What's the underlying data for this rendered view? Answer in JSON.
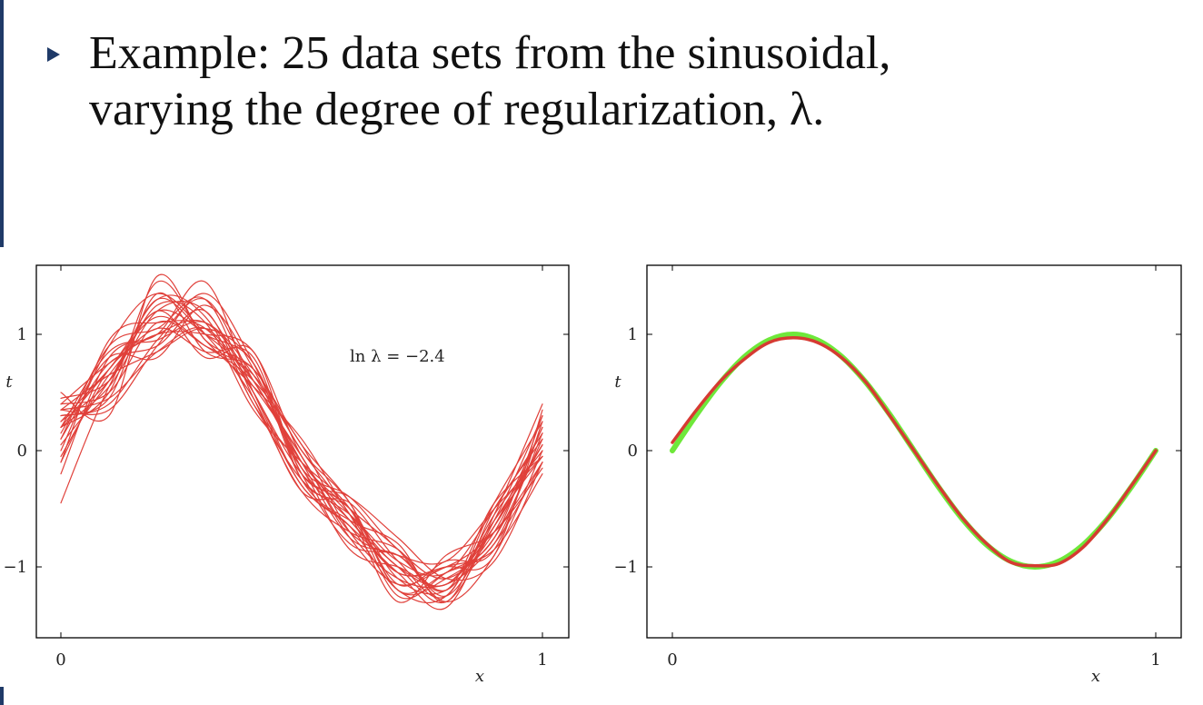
{
  "slide": {
    "bullet_line1": "Example: 25 data sets from the sinusoidal,",
    "bullet_line2": "varying the degree of regularization, λ."
  },
  "chart_data": [
    {
      "type": "line",
      "title": "",
      "xlabel": "x",
      "ylabel": "t",
      "xlim": [
        0,
        1
      ],
      "ylim": [
        -1.6,
        1.6
      ],
      "xticks": [
        "0",
        "1"
      ],
      "yticks": [
        "−1",
        "0",
        "1"
      ],
      "annotation": "ln λ = −2.4",
      "series_color": "#e0403a",
      "num_series": 25,
      "series": [
        {
          "x": [
            0,
            0.1,
            0.2,
            0.3,
            0.4,
            0.5,
            0.6,
            0.7,
            0.8,
            0.9,
            1.0
          ],
          "values": [
            0.25,
            0.6,
            1.3,
            1.0,
            0.75,
            -0.25,
            -0.5,
            -1.1,
            -1.2,
            -0.65,
            0.2
          ]
        },
        {
          "x": [
            0,
            0.1,
            0.2,
            0.3,
            0.4,
            0.5,
            0.6,
            0.7,
            0.8,
            0.9,
            1.0
          ],
          "values": [
            -0.1,
            0.7,
            1.0,
            1.1,
            0.6,
            -0.1,
            -0.5,
            -0.85,
            -1.3,
            -0.9,
            0.0
          ]
        },
        {
          "x": [
            0,
            0.1,
            0.2,
            0.3,
            0.4,
            0.5,
            0.6,
            0.7,
            0.8,
            0.9,
            1.0
          ],
          "values": [
            0.35,
            0.45,
            0.85,
            1.05,
            0.55,
            -0.05,
            -0.7,
            -0.9,
            -0.95,
            -0.5,
            -0.05
          ]
        },
        {
          "x": [
            0,
            0.1,
            0.2,
            0.3,
            0.4,
            0.5,
            0.6,
            0.7,
            0.8,
            0.9,
            1.0
          ],
          "values": [
            0.5,
            0.3,
            1.5,
            0.95,
            0.7,
            0.05,
            -0.45,
            -1.2,
            -1.05,
            -0.8,
            0.15
          ]
        },
        {
          "x": [
            0,
            0.1,
            0.2,
            0.3,
            0.4,
            0.5,
            0.6,
            0.7,
            0.8,
            0.9,
            1.0
          ],
          "values": [
            0.2,
            0.85,
            1.0,
            1.45,
            0.5,
            -0.3,
            -0.65,
            -1.05,
            -1.35,
            -0.55,
            0.4
          ]
        },
        {
          "x": [
            0,
            0.1,
            0.2,
            0.3,
            0.4,
            0.5,
            0.6,
            0.7,
            0.8,
            0.9,
            1.0
          ],
          "values": [
            -0.45,
            0.55,
            1.2,
            0.8,
            0.85,
            -0.2,
            -0.4,
            -0.75,
            -1.1,
            -0.95,
            -0.1
          ]
        },
        {
          "x": [
            0,
            0.1,
            0.2,
            0.3,
            0.4,
            0.5,
            0.6,
            0.7,
            0.8,
            0.9,
            1.0
          ],
          "values": [
            0.1,
            0.75,
            0.9,
            1.2,
            0.4,
            -0.15,
            -0.85,
            -1.0,
            -1.15,
            -0.6,
            0.05
          ]
        },
        {
          "x": [
            0,
            0.1,
            0.2,
            0.3,
            0.4,
            0.5,
            0.6,
            0.7,
            0.8,
            0.9,
            1.0
          ],
          "values": [
            0.4,
            0.5,
            1.1,
            0.9,
            0.65,
            0.0,
            -0.55,
            -1.3,
            -0.9,
            -0.7,
            -0.15
          ]
        },
        {
          "x": [
            0,
            0.1,
            0.2,
            0.3,
            0.4,
            0.5,
            0.6,
            0.7,
            0.8,
            0.9,
            1.0
          ],
          "values": [
            0.0,
            0.9,
            1.35,
            1.0,
            0.45,
            -0.35,
            -0.45,
            -0.95,
            -1.25,
            -0.45,
            0.25
          ]
        },
        {
          "x": [
            0,
            0.1,
            0.2,
            0.3,
            0.4,
            0.5,
            0.6,
            0.7,
            0.8,
            0.9,
            1.0
          ],
          "values": [
            0.3,
            0.4,
            0.95,
            1.3,
            0.6,
            -0.05,
            -0.75,
            -1.15,
            -1.0,
            -0.85,
            -0.2
          ]
        },
        {
          "x": [
            0,
            0.1,
            0.2,
            0.3,
            0.4,
            0.5,
            0.6,
            0.7,
            0.8,
            0.9,
            1.0
          ],
          "values": [
            -0.05,
            0.65,
            1.05,
            0.85,
            0.8,
            -0.25,
            -0.6,
            -0.8,
            -1.3,
            -0.5,
            0.1
          ]
        },
        {
          "x": [
            0,
            0.1,
            0.2,
            0.3,
            0.4,
            0.5,
            0.6,
            0.7,
            0.8,
            0.9,
            1.0
          ],
          "values": [
            0.45,
            0.6,
            1.25,
            1.1,
            0.35,
            -0.1,
            -0.5,
            -1.25,
            -1.05,
            -0.75,
            0.3
          ]
        },
        {
          "x": [
            0,
            0.1,
            0.2,
            0.3,
            0.4,
            0.5,
            0.6,
            0.7,
            0.8,
            0.9,
            1.0
          ],
          "values": [
            0.15,
            0.8,
            0.8,
            1.25,
            0.7,
            -0.2,
            -0.8,
            -0.9,
            -1.2,
            -0.6,
            -0.05
          ]
        },
        {
          "x": [
            0,
            0.1,
            0.2,
            0.3,
            0.4,
            0.5,
            0.6,
            0.7,
            0.8,
            0.9,
            1.0
          ],
          "values": [
            0.2,
            0.5,
            1.45,
            0.95,
            0.55,
            0.1,
            -0.55,
            -1.05,
            -1.0,
            -0.9,
            0.35
          ]
        },
        {
          "x": [
            0,
            0.1,
            0.2,
            0.3,
            0.4,
            0.5,
            0.6,
            0.7,
            0.8,
            0.9,
            1.0
          ],
          "values": [
            -0.1,
            0.95,
            1.1,
            1.05,
            0.5,
            -0.3,
            -0.65,
            -1.2,
            -1.25,
            -0.55,
            0.0
          ]
        },
        {
          "x": [
            0,
            0.1,
            0.2,
            0.3,
            0.4,
            0.5,
            0.6,
            0.7,
            0.8,
            0.9,
            1.0
          ],
          "values": [
            0.35,
            0.35,
            0.9,
            1.35,
            0.75,
            -0.15,
            -0.4,
            -0.85,
            -1.1,
            -0.7,
            0.2
          ]
        },
        {
          "x": [
            0,
            0.1,
            0.2,
            0.3,
            0.4,
            0.5,
            0.6,
            0.7,
            0.8,
            0.9,
            1.0
          ],
          "values": [
            0.25,
            0.7,
            1.15,
            0.9,
            0.6,
            0.05,
            -0.7,
            -1.1,
            -1.15,
            -0.8,
            -0.1
          ]
        },
        {
          "x": [
            0,
            0.1,
            0.2,
            0.3,
            0.4,
            0.5,
            0.6,
            0.7,
            0.8,
            0.9,
            1.0
          ],
          "values": [
            0.05,
            0.6,
            1.3,
            1.15,
            0.4,
            -0.25,
            -0.55,
            -0.95,
            -1.05,
            -0.5,
            0.15
          ]
        },
        {
          "x": [
            0,
            0.1,
            0.2,
            0.3,
            0.4,
            0.5,
            0.6,
            0.7,
            0.8,
            0.9,
            1.0
          ],
          "values": [
            0.4,
            0.75,
            1.0,
            1.0,
            0.85,
            -0.05,
            -0.6,
            -1.0,
            -1.3,
            -0.65,
            0.05
          ]
        },
        {
          "x": [
            0,
            0.1,
            0.2,
            0.3,
            0.4,
            0.5,
            0.6,
            0.7,
            0.8,
            0.9,
            1.0
          ],
          "values": [
            0.2,
            0.55,
            1.2,
            1.2,
            0.5,
            -0.2,
            -0.5,
            -1.15,
            -0.95,
            -0.85,
            0.25
          ]
        },
        {
          "x": [
            0,
            0.1,
            0.2,
            0.3,
            0.4,
            0.5,
            0.6,
            0.7,
            0.8,
            0.9,
            1.0
          ],
          "values": [
            -0.2,
            0.8,
            0.95,
            1.1,
            0.65,
            -0.1,
            -0.75,
            -0.9,
            -1.2,
            -0.45,
            -0.05
          ]
        },
        {
          "x": [
            0,
            0.1,
            0.2,
            0.3,
            0.4,
            0.5,
            0.6,
            0.7,
            0.8,
            0.9,
            1.0
          ],
          "values": [
            0.3,
            0.45,
            1.35,
            0.85,
            0.7,
            0.0,
            -0.45,
            -1.2,
            -1.1,
            -0.75,
            0.1
          ]
        },
        {
          "x": [
            0,
            0.1,
            0.2,
            0.3,
            0.4,
            0.5,
            0.6,
            0.7,
            0.8,
            0.9,
            1.0
          ],
          "values": [
            0.1,
            0.9,
            1.05,
            1.3,
            0.45,
            -0.35,
            -0.7,
            -0.85,
            -1.25,
            -0.6,
            0.3
          ]
        },
        {
          "x": [
            0,
            0.1,
            0.2,
            0.3,
            0.4,
            0.5,
            0.6,
            0.7,
            0.8,
            0.9,
            1.0
          ],
          "values": [
            0.35,
            0.65,
            0.85,
            1.05,
            0.75,
            -0.15,
            -0.6,
            -1.05,
            -1.0,
            -0.7,
            -0.1
          ]
        },
        {
          "x": [
            0,
            0.1,
            0.2,
            0.3,
            0.4,
            0.5,
            0.6,
            0.7,
            0.8,
            0.9,
            1.0
          ],
          "values": [
            0.2,
            0.7,
            1.2,
            1.0,
            0.6,
            -0.1,
            -0.55,
            -1.0,
            -1.15,
            -0.65,
            0.05
          ]
        }
      ]
    },
    {
      "type": "line",
      "title": "",
      "xlabel": "x",
      "ylabel": "t",
      "xlim": [
        0,
        1
      ],
      "ylim": [
        -1.6,
        1.6
      ],
      "xticks": [
        "0",
        "1"
      ],
      "yticks": [
        "−1",
        "0",
        "1"
      ],
      "series": [
        {
          "color": "#6ee83a",
          "x": [
            0,
            0.05,
            0.1,
            0.15,
            0.2,
            0.25,
            0.3,
            0.35,
            0.4,
            0.45,
            0.5,
            0.55,
            0.6,
            0.65,
            0.7,
            0.75,
            0.8,
            0.85,
            0.9,
            0.95,
            1.0
          ],
          "values": [
            0,
            0.309,
            0.588,
            0.809,
            0.951,
            1.0,
            0.951,
            0.809,
            0.588,
            0.309,
            0,
            -0.309,
            -0.588,
            -0.809,
            -0.951,
            -1.0,
            -0.951,
            -0.809,
            -0.588,
            -0.309,
            0
          ]
        },
        {
          "color": "#d63a32",
          "x": [
            0,
            0.05,
            0.1,
            0.15,
            0.2,
            0.25,
            0.3,
            0.35,
            0.4,
            0.45,
            0.5,
            0.55,
            0.6,
            0.65,
            0.7,
            0.75,
            0.8,
            0.85,
            0.9,
            0.95,
            1.0
          ],
          "values": [
            0.07,
            0.35,
            0.6,
            0.79,
            0.93,
            0.97,
            0.93,
            0.8,
            0.59,
            0.3,
            0.0,
            -0.3,
            -0.58,
            -0.8,
            -0.96,
            -0.99,
            -0.97,
            -0.83,
            -0.59,
            -0.3,
            0.0
          ]
        }
      ]
    }
  ]
}
